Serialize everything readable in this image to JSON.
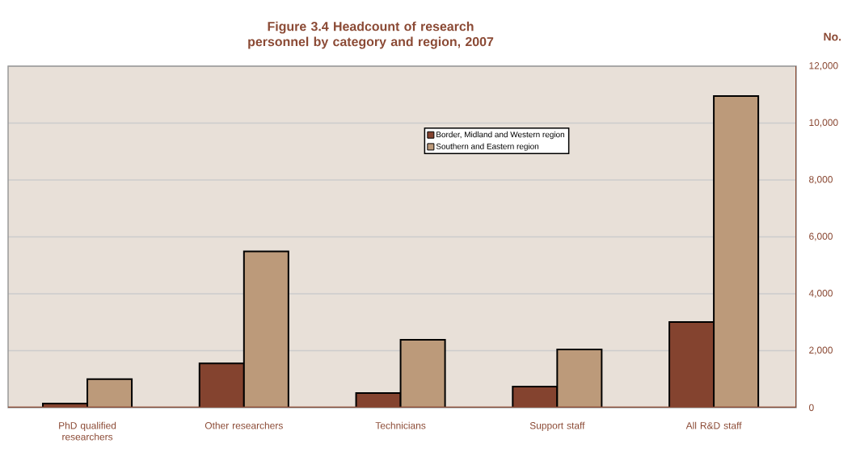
{
  "chart_data": {
    "type": "bar",
    "title": "Figure 3.4 Headcount of research personnel by category and region, 2007",
    "ylabel": "No.",
    "categories": [
      "PhD qualified researchers",
      "Other researchers",
      "Technicians",
      "Support staff",
      "All R&D staff"
    ],
    "series": [
      {
        "name": "Border, Midland and Western region",
        "color": "#84432f",
        "values": [
          140,
          1550,
          510,
          740,
          3010
        ]
      },
      {
        "name": "Southern and Eastern region",
        "color": "#bc9a7a",
        "values": [
          1000,
          5490,
          2380,
          2040,
          10950
        ]
      }
    ],
    "ylim": [
      0,
      12000
    ],
    "yticks": [
      0,
      {
        "value": 2000,
        "label": "2,000"
      },
      {
        "value": 4000,
        "label": "4,000"
      },
      {
        "value": 6000,
        "label": "6,000"
      },
      {
        "value": 8000,
        "label": "8,000"
      },
      {
        "value": 10000,
        "label": "10,000"
      },
      {
        "value": 12000,
        "label": "12,000"
      }
    ],
    "grid": "y",
    "legend": "top"
  }
}
